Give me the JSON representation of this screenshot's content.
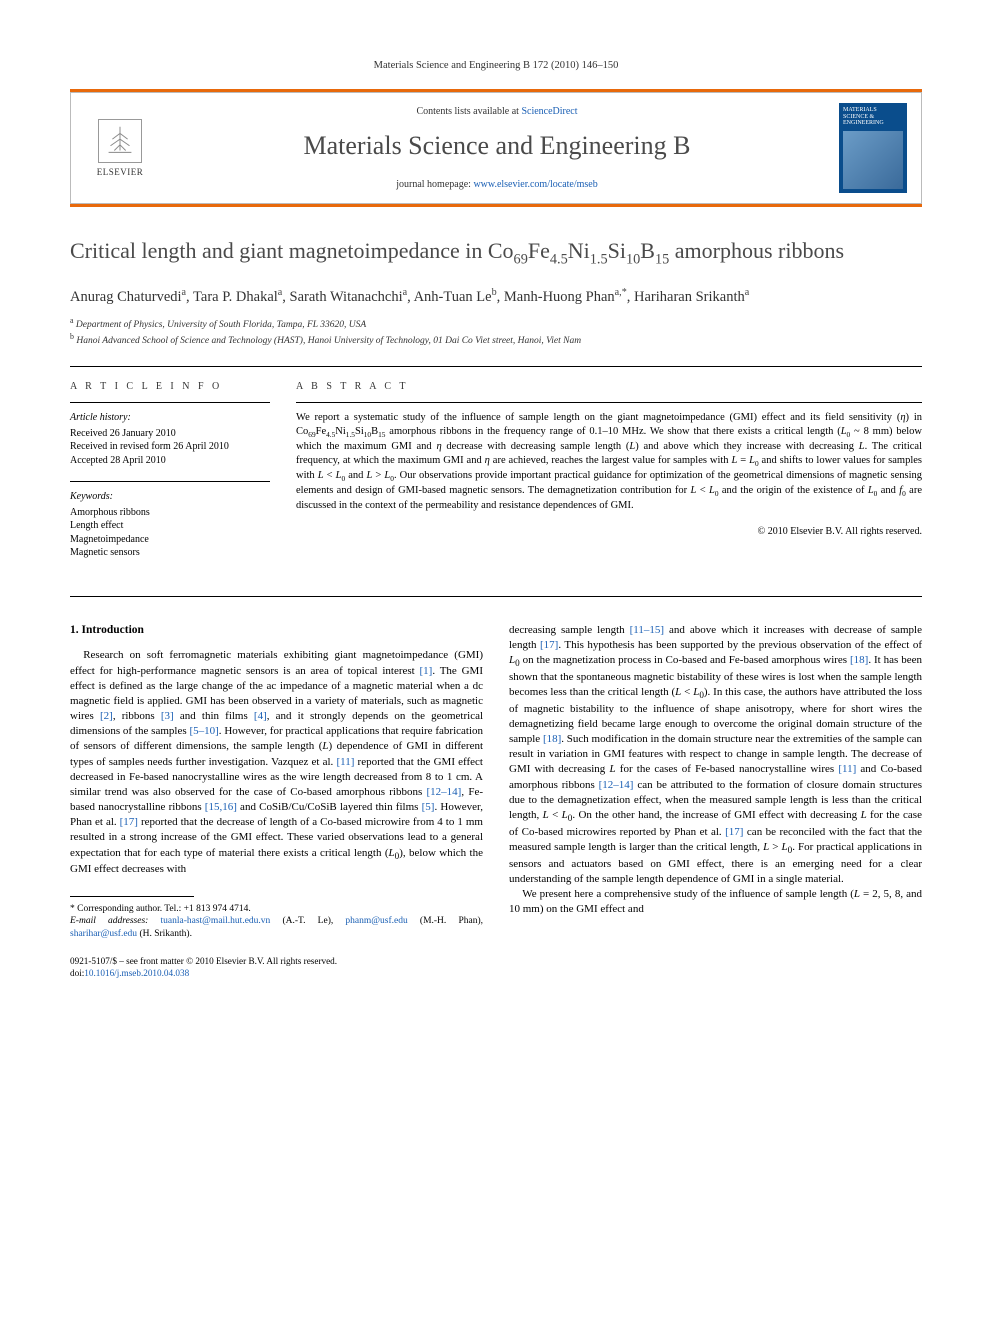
{
  "running_head": "Materials Science and Engineering B 172 (2010) 146–150",
  "header": {
    "elsevier": "ELSEVIER",
    "contents_prefix": "Contents lists available at ",
    "contents_link": "ScienceDirect",
    "journal_title": "Materials Science and Engineering B",
    "homepage_prefix": "journal homepage: ",
    "homepage_link": "www.elsevier.com/locate/mseb",
    "cover_text": "MATERIALS SCIENCE & ENGINEERING"
  },
  "title_html": "Critical length and giant magnetoimpedance in Co<sub>69</sub>Fe<sub>4.5</sub>Ni<sub>1.5</sub>Si<sub>10</sub>B<sub>15</sub> amorphous ribbons",
  "authors_html": "Anurag Chaturvedi<sup>a</sup>, Tara P. Dhakal<sup>a</sup>, Sarath Witanachchi<sup>a</sup>, Anh-Tuan Le<sup>b</sup>, Manh-Huong Phan<sup>a,*</sup>, Hariharan Srikanth<sup>a</sup>",
  "affiliations": {
    "a": "Department of Physics, University of South Florida, Tampa, FL 33620, USA",
    "b": "Hanoi Advanced School of Science and Technology (HAST), Hanoi University of Technology, 01 Dai Co Viet street, Hanoi, Viet Nam"
  },
  "article_info": {
    "heading": "A R T I C L E  I N F O",
    "history_label": "Article history:",
    "history": [
      "Received 26 January 2010",
      "Received in revised form 26 April 2010",
      "Accepted 28 April 2010"
    ],
    "keywords_label": "Keywords:",
    "keywords": [
      "Amorphous ribbons",
      "Length effect",
      "Magnetoimpedance",
      "Magnetic sensors"
    ]
  },
  "abstract": {
    "heading": "A B S T R A C T",
    "text_html": "We report a systematic study of the influence of sample length on the giant magnetoimpedance (GMI) effect and its field sensitivity (<i>η</i>) in Co<sub>69</sub>Fe<sub>4.5</sub>Ni<sub>1.5</sub>Si<sub>10</sub>B<sub>15</sub> amorphous ribbons in the frequency range of 0.1–10 MHz. We show that there exists a critical length (<i>L</i><sub>0</sub> ~ 8 mm) below which the maximum GMI and <i>η</i> decrease with decreasing sample length (<i>L</i>) and above which they increase with decreasing <i>L</i>. The critical frequency, at which the maximum GMI and <i>η</i> are achieved, reaches the largest value for samples with <i>L</i> = <i>L</i><sub>0</sub> and shifts to lower values for samples with <i>L</i> &lt; <i>L</i><sub>0</sub> and <i>L</i> &gt; <i>L</i><sub>0</sub>. Our observations provide important practical guidance for optimization of the geometrical dimensions of magnetic sensing elements and design of GMI-based magnetic sensors. The demagnetization contribution for <i>L</i> &lt; <i>L</i><sub>0</sub> and the origin of the existence of <i>L</i><sub>0</sub> and <i>f</i><sub>0</sub> are discussed in the context of the permeability and resistance dependences of GMI.",
    "copyright": "© 2010 Elsevier B.V. All rights reserved."
  },
  "section1": {
    "heading": "1. Introduction",
    "p1_html": "Research on soft ferromagnetic materials exhibiting giant magnetoimpedance (GMI) effect for high-performance magnetic sensors is an area of topical interest <span class=\"ref-link\">[1]</span>. The GMI effect is defined as the large change of the ac impedance of a magnetic material when a dc magnetic field is applied. GMI has been observed in a variety of materials, such as magnetic wires <span class=\"ref-link\">[2]</span>, ribbons <span class=\"ref-link\">[3]</span> and thin films <span class=\"ref-link\">[4]</span>, and it strongly depends on the geometrical dimensions of the samples <span class=\"ref-link\">[5–10]</span>. However, for practical applications that require fabrication of sensors of different dimensions, the sample length (<i>L</i>) dependence of GMI in different types of samples needs further investigation. Vazquez et al. <span class=\"ref-link\">[11]</span> reported that the GMI effect decreased in Fe-based nanocrystalline wires as the wire length decreased from 8 to 1 cm. A similar trend was also observed for the case of Co-based amorphous ribbons <span class=\"ref-link\">[12–14]</span>, Fe-based nanocrystalline ribbons <span class=\"ref-link\">[15,16]</span> and CoSiB/Cu/CoSiB layered thin films <span class=\"ref-link\">[5]</span>. However, Phan et al. <span class=\"ref-link\">[17]</span> reported that the decrease of length of a Co-based microwire from 4 to 1 mm resulted in a strong increase of the GMI effect. These varied observations lead to a general expectation that for each type of material there exists a critical length (<i>L</i><sub>0</sub>), below which the GMI effect decreases with",
    "p1b_html": "decreasing sample length <span class=\"ref-link\">[11–15]</span> and above which it increases with decrease of sample length <span class=\"ref-link\">[17]</span>. This hypothesis has been supported by the previous observation of the effect of <i>L</i><sub>0</sub> on the magnetization process in Co-based and Fe-based amorphous wires <span class=\"ref-link\">[18]</span>. It has been shown that the spontaneous magnetic bistability of these wires is lost when the sample length becomes less than the critical length (<i>L</i> &lt; <i>L</i><sub>0</sub>). In this case, the authors have attributed the loss of magnetic bistability to the influence of shape anisotropy, where for short wires the demagnetizing field became large enough to overcome the original domain structure of the sample <span class=\"ref-link\">[18]</span>. Such modification in the domain structure near the extremities of the sample can result in variation in GMI features with respect to change in sample length. The decrease of GMI with decreasing <i>L</i> for the cases of Fe-based nanocrystalline wires <span class=\"ref-link\">[11]</span> and Co-based amorphous ribbons <span class=\"ref-link\">[12–14]</span> can be attributed to the formation of closure domain structures due to the demagnetization effect, when the measured sample length is less than the critical length, <i>L</i> &lt; <i>L</i><sub>0</sub>. On the other hand, the increase of GMI effect with decreasing <i>L</i> for the case of Co-based microwires reported by Phan et al. <span class=\"ref-link\">[17]</span> can be reconciled with the fact that the measured sample length is larger than the critical length, <i>L</i> &gt; <i>L</i><sub>0</sub>. For practical applications in sensors and actuators based on GMI effect, there is an emerging need for a clear understanding of the sample length dependence of GMI in a single material.",
    "p2_html": "We present here a comprehensive study of the influence of sample length (<i>L</i> = 2, 5, 8, and 10 mm) on the GMI effect and"
  },
  "footnotes": {
    "corr": "* Corresponding author. Tel.: +1 813 974 4714.",
    "emails_label": "E-mail addresses:",
    "emails_html": "<a>tuanla-hast@mail.hut.edu.vn</a> (A.-T. Le), <a>phanm@usf.edu</a> (M.-H. Phan), <a>sharihar@usf.edu</a> (H. Srikanth)."
  },
  "bottom": {
    "line1": "0921-5107/$ – see front matter © 2010 Elsevier B.V. All rights reserved.",
    "doi_prefix": "doi:",
    "doi": "10.1016/j.mseb.2010.04.038"
  },
  "colors": {
    "orange": "#e8690b",
    "link": "#1a5fb4",
    "cover_bg": "#0a4d8c"
  }
}
